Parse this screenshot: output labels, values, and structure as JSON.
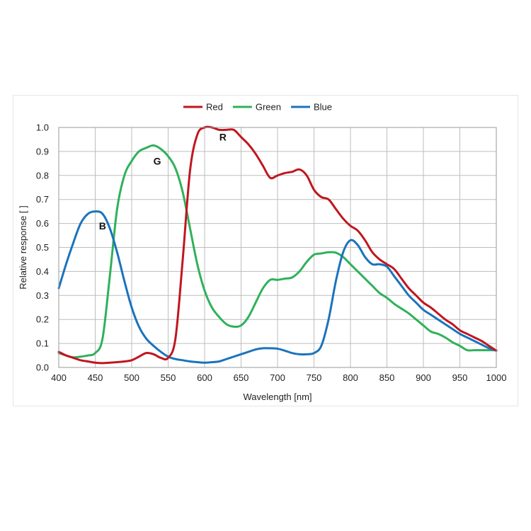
{
  "chart_data": {
    "type": "line",
    "title": "",
    "xlabel": "Wavelength [nm]",
    "ylabel": "Relative response [ ]",
    "xlim": [
      400,
      1000
    ],
    "ylim": [
      0,
      1.0
    ],
    "xticks": [
      400,
      450,
      500,
      550,
      600,
      650,
      700,
      750,
      800,
      850,
      900,
      950,
      1000
    ],
    "xtick_labels": [
      "400",
      "450",
      "500",
      "550",
      "600",
      "650",
      "700",
      "750",
      "800",
      "850",
      "900",
      "950",
      "1000"
    ],
    "yticks": [
      0.0,
      0.1,
      0.2,
      0.3,
      0.4,
      0.5,
      0.6,
      0.7,
      0.8,
      0.9,
      1.0
    ],
    "ytick_labels": [
      "0.0",
      "0.1",
      "0.2",
      "0.3",
      "0.4",
      "0.5",
      "0.6",
      "0.7",
      "0.8",
      "0.9",
      "1.0"
    ],
    "grid": true,
    "legend_position": "top-center",
    "series": [
      {
        "name": "Red",
        "color": "#c0161f",
        "x": [
          400,
          410,
          420,
          430,
          440,
          450,
          460,
          470,
          480,
          490,
          500,
          510,
          520,
          530,
          540,
          550,
          560,
          570,
          580,
          590,
          600,
          610,
          620,
          630,
          640,
          650,
          660,
          670,
          680,
          690,
          700,
          710,
          720,
          730,
          740,
          750,
          760,
          770,
          780,
          790,
          800,
          810,
          820,
          830,
          840,
          850,
          860,
          870,
          880,
          890,
          900,
          910,
          920,
          930,
          940,
          950,
          960,
          970,
          980,
          990,
          1000
        ],
        "y": [
          0.065,
          0.05,
          0.04,
          0.03,
          0.025,
          0.02,
          0.018,
          0.02,
          0.022,
          0.025,
          0.03,
          0.045,
          0.06,
          0.055,
          0.04,
          0.04,
          0.12,
          0.45,
          0.82,
          0.97,
          1.0,
          1.0,
          0.99,
          0.99,
          0.99,
          0.96,
          0.93,
          0.89,
          0.84,
          0.79,
          0.8,
          0.81,
          0.815,
          0.825,
          0.8,
          0.74,
          0.71,
          0.7,
          0.66,
          0.62,
          0.59,
          0.57,
          0.53,
          0.48,
          0.45,
          0.43,
          0.41,
          0.37,
          0.33,
          0.3,
          0.27,
          0.25,
          0.225,
          0.2,
          0.18,
          0.155,
          0.14,
          0.125,
          0.11,
          0.09,
          0.07
        ]
      },
      {
        "name": "Green",
        "color": "#2fb15a",
        "x": [
          400,
          410,
          420,
          430,
          440,
          450,
          460,
          470,
          480,
          490,
          500,
          510,
          520,
          530,
          540,
          550,
          560,
          570,
          580,
          590,
          600,
          610,
          620,
          630,
          640,
          650,
          660,
          670,
          680,
          690,
          700,
          710,
          720,
          730,
          740,
          750,
          760,
          770,
          780,
          790,
          800,
          810,
          820,
          830,
          840,
          850,
          860,
          870,
          880,
          890,
          900,
          910,
          920,
          930,
          940,
          950,
          960,
          970,
          980,
          990,
          1000
        ],
        "y": [
          0.06,
          0.05,
          0.042,
          0.045,
          0.05,
          0.06,
          0.12,
          0.38,
          0.66,
          0.8,
          0.86,
          0.9,
          0.915,
          0.925,
          0.91,
          0.88,
          0.83,
          0.73,
          0.58,
          0.43,
          0.32,
          0.25,
          0.21,
          0.18,
          0.17,
          0.175,
          0.21,
          0.27,
          0.33,
          0.365,
          0.365,
          0.37,
          0.375,
          0.4,
          0.44,
          0.47,
          0.475,
          0.48,
          0.478,
          0.46,
          0.43,
          0.4,
          0.37,
          0.34,
          0.31,
          0.29,
          0.265,
          0.245,
          0.225,
          0.2,
          0.175,
          0.15,
          0.14,
          0.125,
          0.105,
          0.09,
          0.072,
          0.072,
          0.072,
          0.072,
          0.072
        ]
      },
      {
        "name": "Blue",
        "color": "#1a73bd",
        "x": [
          400,
          410,
          420,
          430,
          440,
          450,
          460,
          470,
          480,
          490,
          500,
          510,
          520,
          530,
          540,
          550,
          560,
          570,
          580,
          590,
          600,
          610,
          620,
          630,
          640,
          650,
          660,
          670,
          680,
          690,
          700,
          710,
          720,
          730,
          740,
          750,
          760,
          770,
          780,
          790,
          800,
          810,
          820,
          830,
          840,
          850,
          860,
          870,
          880,
          890,
          900,
          910,
          920,
          930,
          940,
          950,
          960,
          970,
          980,
          990,
          1000
        ],
        "y": [
          0.33,
          0.43,
          0.52,
          0.6,
          0.64,
          0.65,
          0.64,
          0.58,
          0.48,
          0.36,
          0.25,
          0.17,
          0.12,
          0.09,
          0.065,
          0.045,
          0.035,
          0.03,
          0.025,
          0.022,
          0.02,
          0.022,
          0.025,
          0.035,
          0.045,
          0.055,
          0.065,
          0.075,
          0.08,
          0.08,
          0.078,
          0.07,
          0.06,
          0.055,
          0.055,
          0.06,
          0.09,
          0.2,
          0.36,
          0.48,
          0.53,
          0.51,
          0.46,
          0.43,
          0.43,
          0.42,
          0.38,
          0.34,
          0.3,
          0.27,
          0.24,
          0.22,
          0.2,
          0.18,
          0.16,
          0.14,
          0.125,
          0.11,
          0.095,
          0.08,
          0.07
        ]
      }
    ],
    "annotations": [
      {
        "text": "R",
        "x": 625,
        "y": 0.945
      },
      {
        "text": "G",
        "x": 535,
        "y": 0.845
      },
      {
        "text": "B",
        "x": 460,
        "y": 0.575
      }
    ]
  }
}
